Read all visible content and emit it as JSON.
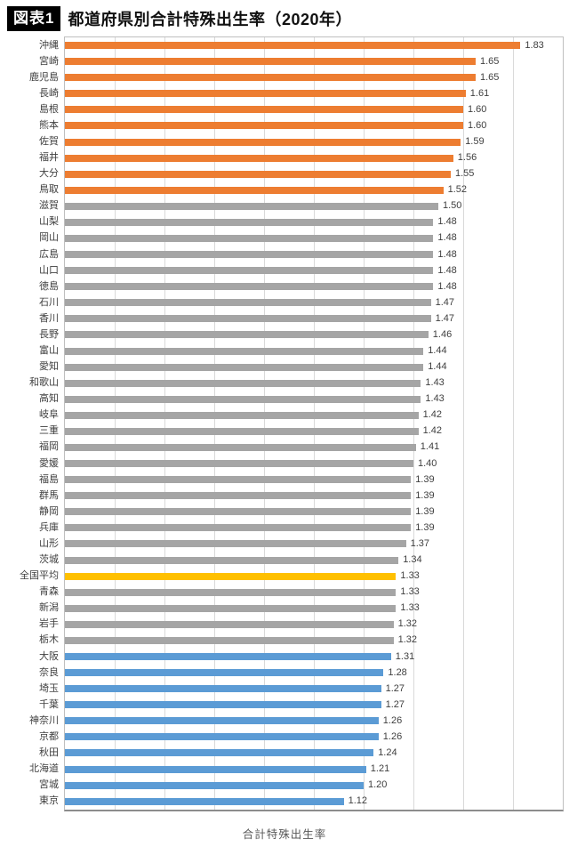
{
  "header": {
    "badge": "図表1",
    "title": "都道府県別合計特殊出生率（2020年）"
  },
  "chart_data": {
    "type": "bar",
    "orientation": "horizontal",
    "title": "都道府県別合計特殊出生率（2020年）",
    "xlabel": "合計特殊出生率",
    "ylabel": "",
    "xlim": [
      0,
      2.0
    ],
    "grid_step": 0.2,
    "grid": true,
    "legend": false,
    "value_labels": true,
    "value_label_decimals": 2,
    "categories": [
      "沖縄",
      "宮崎",
      "鹿児島",
      "長崎",
      "島根",
      "熊本",
      "佐賀",
      "福井",
      "大分",
      "鳥取",
      "滋賀",
      "山梨",
      "岡山",
      "広島",
      "山口",
      "徳島",
      "石川",
      "香川",
      "長野",
      "富山",
      "愛知",
      "和歌山",
      "高知",
      "岐阜",
      "三重",
      "福岡",
      "愛媛",
      "福島",
      "群馬",
      "静岡",
      "兵庫",
      "山形",
      "茨城",
      "全国平均",
      "青森",
      "新潟",
      "岩手",
      "栃木",
      "大阪",
      "奈良",
      "埼玉",
      "千葉",
      "神奈川",
      "京都",
      "秋田",
      "北海道",
      "宮城",
      "東京"
    ],
    "values": [
      1.83,
      1.65,
      1.65,
      1.61,
      1.6,
      1.6,
      1.59,
      1.56,
      1.55,
      1.52,
      1.5,
      1.48,
      1.48,
      1.48,
      1.48,
      1.48,
      1.47,
      1.47,
      1.46,
      1.44,
      1.44,
      1.43,
      1.43,
      1.42,
      1.42,
      1.41,
      1.4,
      1.39,
      1.39,
      1.39,
      1.39,
      1.37,
      1.34,
      1.33,
      1.33,
      1.33,
      1.32,
      1.32,
      1.31,
      1.28,
      1.27,
      1.27,
      1.26,
      1.26,
      1.24,
      1.21,
      1.2,
      1.12
    ],
    "groups": [
      "top10",
      "top10",
      "top10",
      "top10",
      "top10",
      "top10",
      "top10",
      "top10",
      "top10",
      "top10",
      "middle",
      "middle",
      "middle",
      "middle",
      "middle",
      "middle",
      "middle",
      "middle",
      "middle",
      "middle",
      "middle",
      "middle",
      "middle",
      "middle",
      "middle",
      "middle",
      "middle",
      "middle",
      "middle",
      "middle",
      "middle",
      "middle",
      "middle",
      "average",
      "middle",
      "middle",
      "middle",
      "middle",
      "bottom10",
      "bottom10",
      "bottom10",
      "bottom10",
      "bottom10",
      "bottom10",
      "bottom10",
      "bottom10",
      "bottom10",
      "bottom10"
    ],
    "colors": {
      "top10": "#ED7D31",
      "middle": "#A5A5A5",
      "average": "#FFC000",
      "bottom10": "#5B9BD5",
      "gridline": "#D9D9D9",
      "plot_border": "#BFBFBF",
      "axis_line": "#8C8C8C",
      "label_text": "#404040"
    }
  }
}
